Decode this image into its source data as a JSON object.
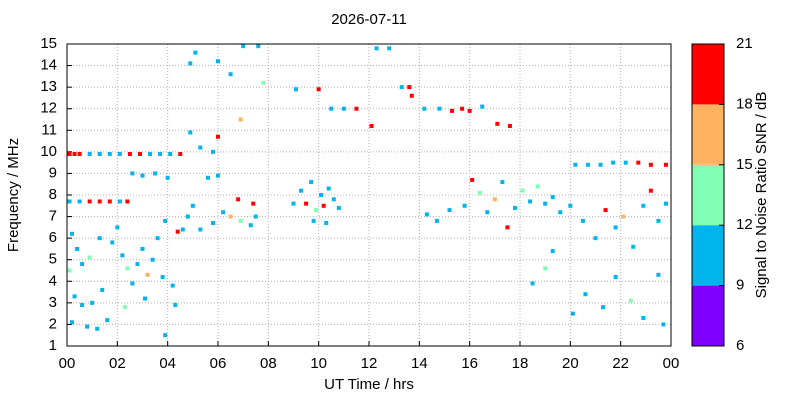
{
  "chart_data": {
    "type": "scatter",
    "title": "2026-07-11",
    "x_label": "UT Time / hrs",
    "y_label": "Frequency / MHz",
    "xlim": [
      0,
      24
    ],
    "xticks": [
      {
        "value": 0,
        "label": "00"
      },
      {
        "value": 2,
        "label": "02"
      },
      {
        "value": 4,
        "label": "04"
      },
      {
        "value": 6,
        "label": "06"
      },
      {
        "value": 8,
        "label": "08"
      },
      10,
      12,
      14,
      16,
      18,
      20,
      22,
      {
        "value": 24,
        "label": "00"
      }
    ],
    "ylim": [
      1,
      15
    ],
    "yticks": [
      1,
      2,
      3,
      4,
      5,
      6,
      7,
      8,
      9,
      10,
      11,
      12,
      13,
      14,
      15
    ],
    "grid": true,
    "colorbar": {
      "label": "Signal to Noise Ratio SNR / dB",
      "lim": [
        6,
        21
      ],
      "ticks": [
        6,
        9,
        12,
        15,
        18,
        21
      ],
      "colors": [
        "#8000ff",
        "#00b4ec",
        "#80ffb4",
        "#ffb360",
        "#ff0000"
      ]
    },
    "x": [
      0.1,
      0.3,
      0.5,
      0.9,
      1.3,
      1.7,
      2.1,
      2.5,
      2.9,
      3.3,
      3.7,
      4.1,
      4.5,
      0.1,
      0.5,
      0.9,
      1.3,
      1.7,
      2.1,
      2.4,
      0.2,
      0.4,
      0.6,
      0.1,
      0.3,
      0.6,
      0.2,
      0.8,
      1.2,
      1.6,
      1.0,
      1.4,
      0.9,
      1.3,
      1.8,
      2.0,
      2.2,
      2.4,
      2.6,
      2.3,
      2.8,
      3.0,
      3.2,
      3.4,
      3.1,
      3.6,
      3.8,
      3.9,
      4.2,
      4.4,
      2.6,
      3.0,
      3.5,
      4.0,
      4.3,
      3.9,
      4.6,
      4.8,
      5.0,
      5.3,
      5.6,
      6.0,
      5.8,
      6.2,
      6.5,
      6.8,
      6.9,
      7.4,
      7.5,
      7.3,
      4.9,
      5.1,
      6.0,
      6.5,
      7.0,
      7.6,
      7.8,
      6.0,
      6.9,
      4.9,
      5.3,
      5.8,
      9.3,
      9.5,
      9.7,
      9.9,
      10.1,
      10.2,
      10.4,
      10.6,
      10.8,
      10.3,
      9.8,
      9.0,
      9.1,
      10.0,
      10.5,
      11.0,
      11.5,
      12.1,
      12.3,
      12.8,
      13.3,
      13.6,
      13.7,
      14.2,
      14.8,
      15.3,
      15.7,
      16.0,
      16.5,
      17.1,
      17.6,
      14.3,
      14.7,
      15.2,
      15.8,
      16.1,
      16.4,
      16.7,
      17.0,
      17.3,
      17.5,
      17.8,
      18.1,
      18.4,
      18.7,
      19.0,
      19.3,
      19.6,
      20.0,
      20.2,
      20.7,
      21.2,
      21.7,
      22.2,
      22.7,
      23.2,
      23.8,
      20.5,
      21.0,
      21.4,
      21.8,
      22.1,
      22.5,
      22.9,
      23.2,
      23.5,
      23.8,
      20.1,
      20.6,
      21.3,
      21.8,
      22.4,
      22.9,
      23.5,
      23.7,
      19.3,
      19.0,
      18.5
    ],
    "y": [
      9.9,
      9.9,
      9.9,
      9.9,
      9.9,
      9.9,
      9.9,
      9.9,
      9.9,
      9.9,
      9.9,
      9.9,
      9.9,
      7.7,
      7.7,
      7.7,
      7.7,
      7.7,
      7.7,
      7.7,
      6.2,
      5.5,
      4.8,
      4.5,
      3.3,
      2.9,
      2.1,
      1.9,
      1.8,
      2.2,
      3.0,
      3.6,
      5.1,
      6.0,
      5.8,
      6.5,
      5.2,
      4.6,
      3.9,
      2.8,
      4.8,
      5.5,
      4.3,
      5.0,
      3.2,
      6.0,
      4.2,
      6.8,
      3.8,
      6.3,
      9.0,
      8.9,
      9.0,
      8.8,
      2.9,
      1.5,
      6.4,
      7.0,
      7.5,
      6.4,
      8.8,
      8.9,
      6.7,
      7.2,
      7.0,
      7.8,
      6.8,
      7.6,
      7.0,
      6.6,
      14.1,
      14.6,
      14.2,
      13.6,
      14.9,
      14.9,
      13.2,
      10.7,
      11.5,
      10.9,
      10.2,
      10.0,
      8.2,
      7.6,
      8.6,
      7.3,
      8.0,
      7.5,
      8.3,
      7.8,
      7.4,
      6.7,
      6.8,
      7.6,
      12.9,
      12.9,
      12.0,
      12.0,
      12.0,
      11.2,
      14.8,
      14.8,
      13.0,
      13.0,
      12.6,
      12.0,
      12.0,
      11.9,
      12.0,
      11.9,
      12.1,
      11.3,
      11.2,
      7.1,
      6.8,
      7.3,
      7.5,
      8.7,
      8.1,
      7.2,
      7.8,
      8.6,
      6.5,
      7.4,
      8.2,
      7.7,
      8.4,
      7.6,
      7.9,
      7.2,
      7.5,
      9.4,
      9.4,
      9.4,
      9.5,
      9.5,
      9.5,
      9.4,
      9.4,
      6.8,
      6.0,
      7.3,
      6.5,
      7.0,
      5.6,
      7.5,
      8.2,
      6.8,
      7.6,
      2.5,
      3.4,
      2.8,
      4.2,
      3.1,
      2.3,
      4.3,
      2.0,
      5.4,
      4.6,
      3.9
    ],
    "snr": [
      20,
      20,
      19,
      10,
      10,
      10,
      11,
      19,
      20,
      10,
      10,
      10,
      19,
      10,
      10,
      19,
      20,
      19,
      10,
      20,
      10,
      11,
      10,
      13,
      10,
      10,
      10,
      10,
      11,
      10,
      10,
      10,
      13,
      10,
      10,
      10,
      10,
      13,
      10,
      13,
      10,
      10,
      16,
      10,
      10,
      10,
      10,
      10,
      10,
      19,
      10,
      10,
      10,
      10,
      10,
      10,
      10,
      10,
      10,
      10,
      10,
      10,
      10,
      10,
      16,
      19,
      13,
      19,
      10,
      10,
      10,
      10,
      10,
      10,
      10,
      10,
      13,
      20,
      16,
      10,
      10,
      10,
      10,
      19,
      10,
      13,
      10,
      19,
      10,
      10,
      10,
      10,
      10,
      10,
      10,
      20,
      10,
      10,
      19,
      19,
      10,
      10,
      10,
      20,
      20,
      10,
      10,
      19,
      19,
      20,
      10,
      19,
      19,
      10,
      10,
      10,
      10,
      20,
      13,
      10,
      16,
      10,
      19,
      10,
      13,
      10,
      13,
      10,
      10,
      10,
      10,
      10,
      10,
      10,
      10,
      10,
      19,
      20,
      19,
      10,
      10,
      19,
      10,
      16,
      10,
      10,
      19,
      10,
      10,
      10,
      10,
      10,
      10,
      13,
      10,
      10,
      10,
      10,
      13,
      10
    ]
  }
}
